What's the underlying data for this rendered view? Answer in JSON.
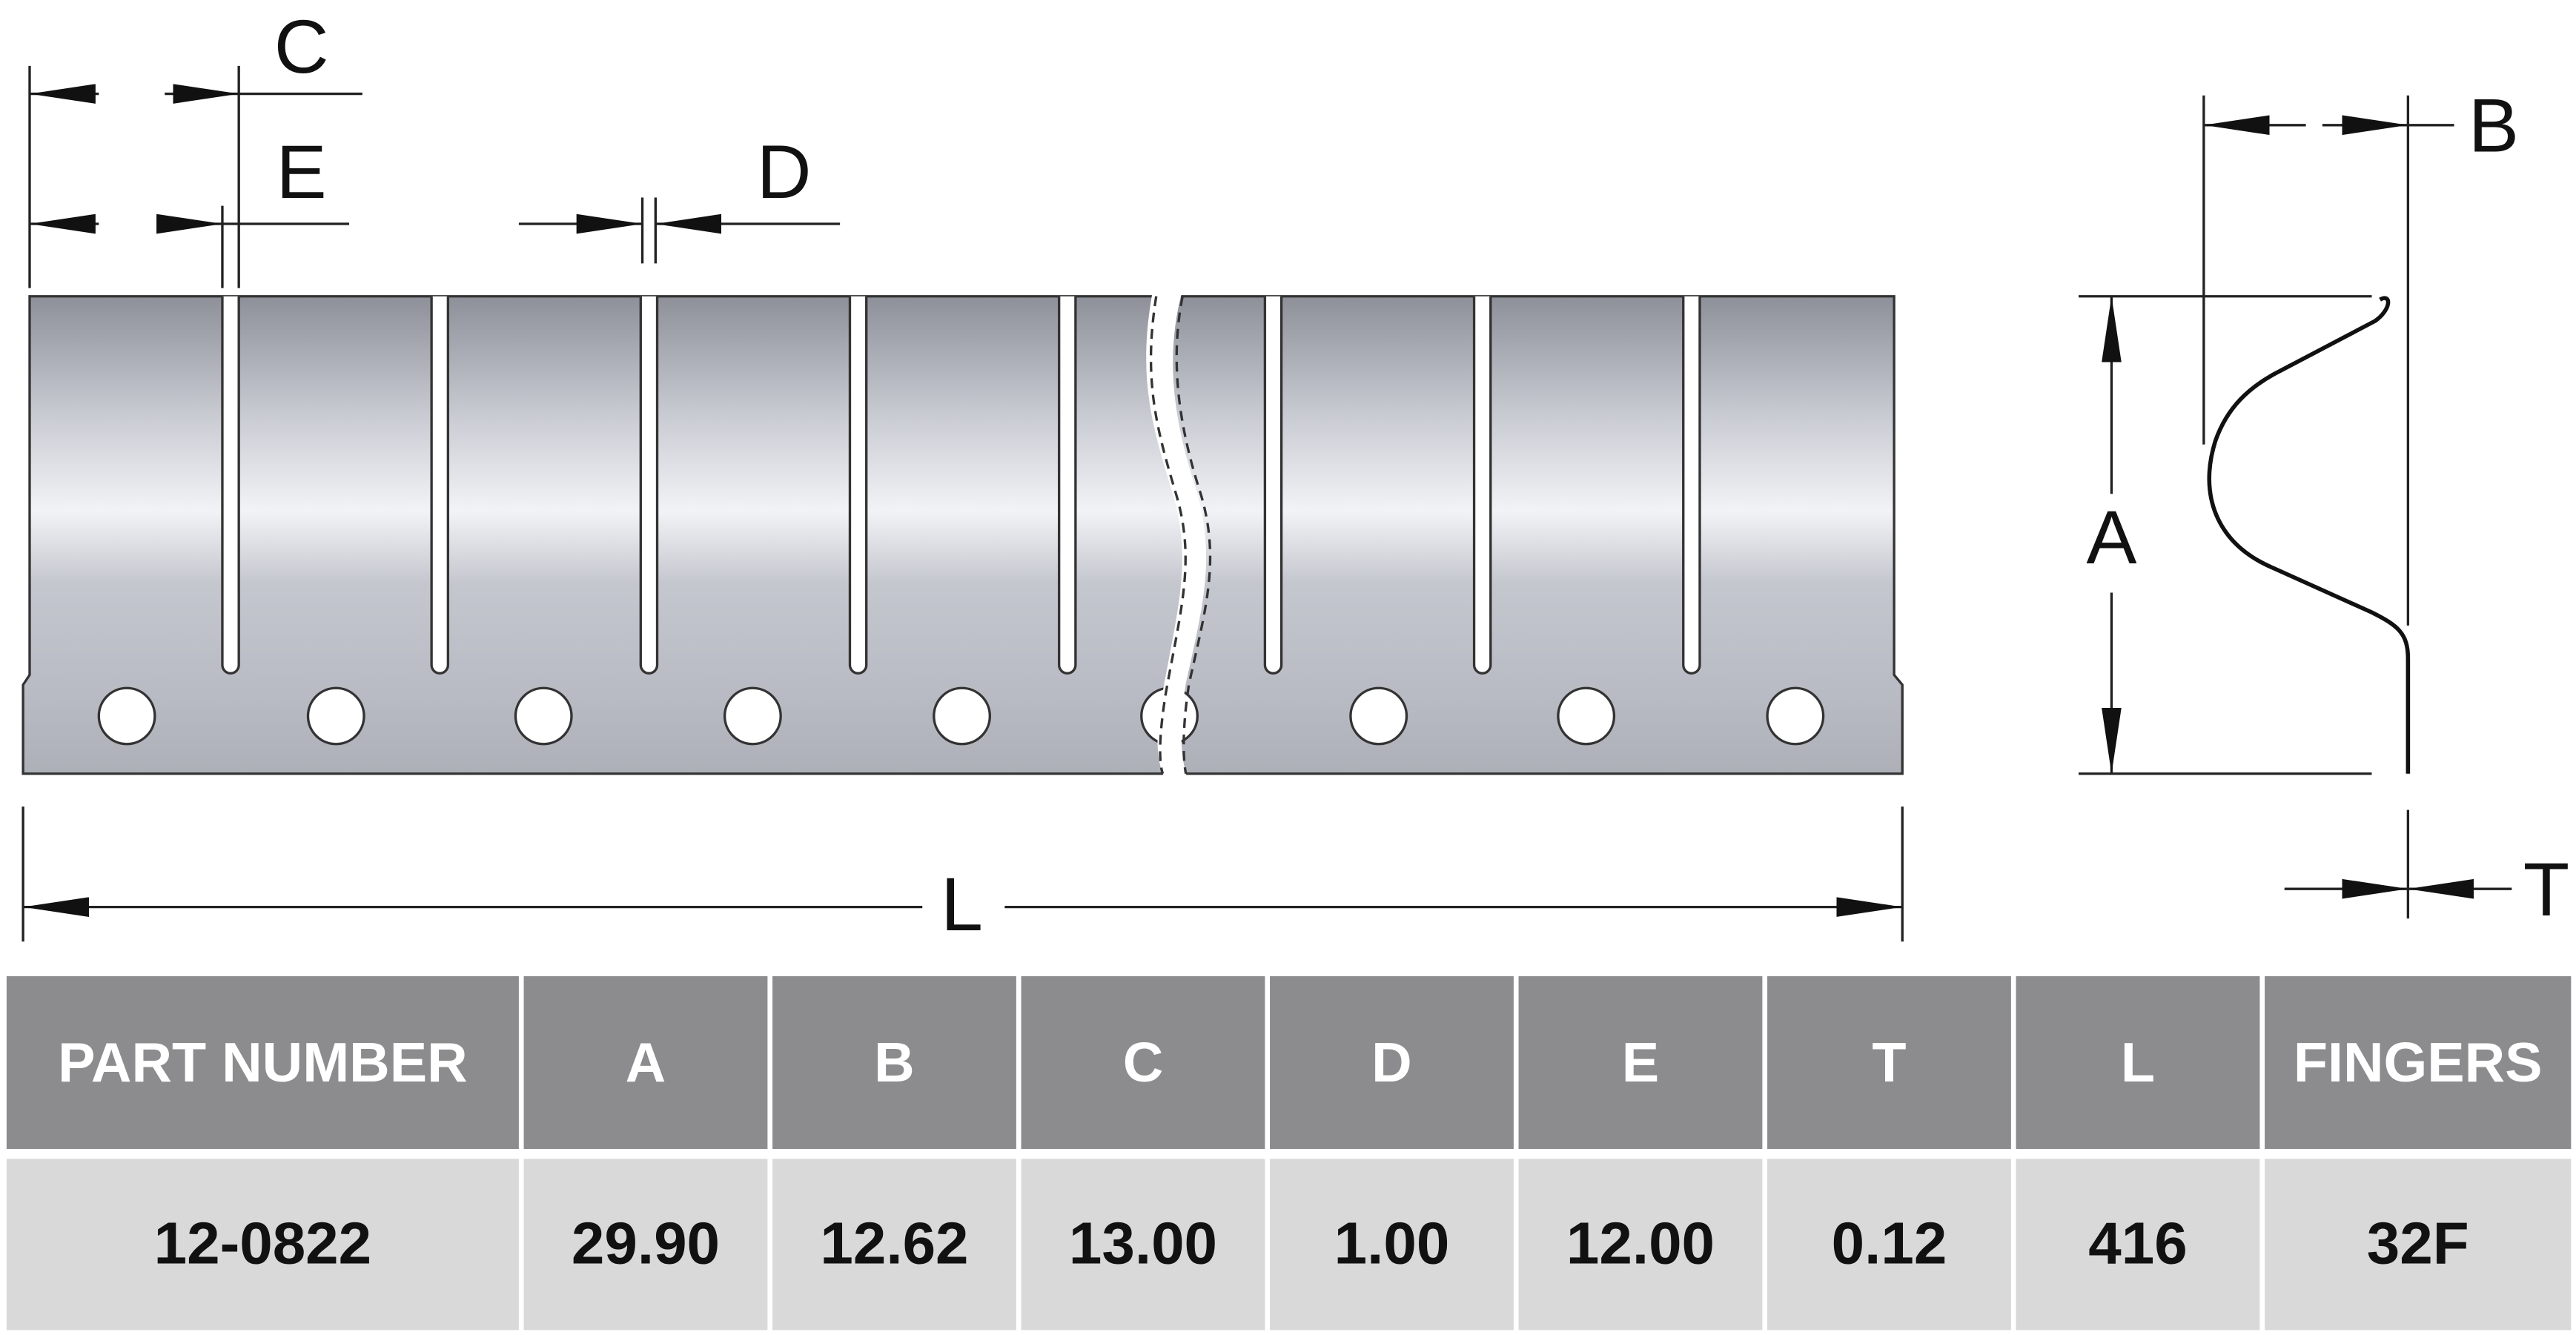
{
  "drawing": {
    "labels": {
      "C": "C",
      "E": "E",
      "D": "D",
      "B": "B",
      "A": "A",
      "L": "L",
      "T": "T"
    }
  },
  "table": {
    "headers": [
      "PART NUMBER",
      "A",
      "B",
      "C",
      "D",
      "E",
      "T",
      "L",
      "FINGERS"
    ],
    "rows": [
      [
        "12-0822",
        "29.90",
        "12.62",
        "13.00",
        "1.00",
        "12.00",
        "0.12",
        "416",
        "32F"
      ]
    ]
  }
}
